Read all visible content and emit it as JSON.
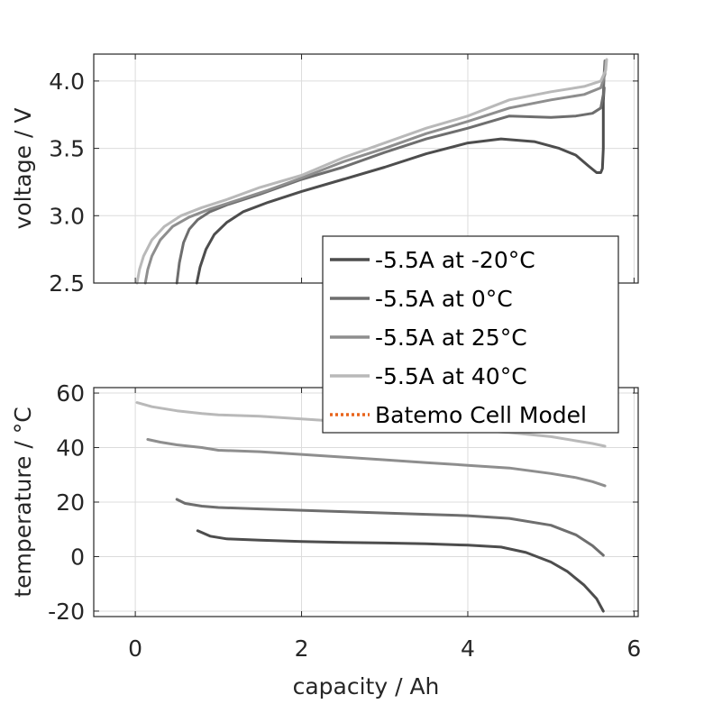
{
  "chart_data": [
    {
      "type": "line",
      "panel": "top",
      "title": "",
      "xlabel": "",
      "ylabel": "voltage / V",
      "xlim": [
        -0.5,
        6.05
      ],
      "ylim": [
        2.5,
        4.2
      ],
      "xticks": [
        0,
        2,
        4,
        6
      ],
      "xtick_labels": [],
      "yticks": [
        2.5,
        3.0,
        3.5,
        4.0
      ],
      "ytick_labels": [
        "2.5",
        "3.0",
        "3.5",
        "4.0"
      ],
      "grid": true,
      "series": [
        {
          "name": "-5.5A at -20°C",
          "color": "#4d4d4d",
          "x": [
            0.74,
            0.78,
            0.85,
            0.95,
            1.1,
            1.3,
            1.6,
            2.0,
            2.5,
            3.0,
            3.5,
            4.0,
            4.4,
            4.8,
            5.1,
            5.3,
            5.45,
            5.55,
            5.6,
            5.62,
            5.63,
            5.63,
            5.63,
            5.64
          ],
          "y": [
            2.5,
            2.62,
            2.75,
            2.86,
            2.95,
            3.03,
            3.1,
            3.18,
            3.27,
            3.36,
            3.46,
            3.54,
            3.57,
            3.55,
            3.5,
            3.45,
            3.37,
            3.32,
            3.32,
            3.35,
            3.5,
            3.7,
            3.85,
            3.95
          ]
        },
        {
          "name": "-5.5A at 0°C",
          "color": "#6e6e6e",
          "x": [
            0.5,
            0.53,
            0.58,
            0.65,
            0.75,
            0.9,
            1.1,
            1.5,
            2.0,
            2.5,
            3.0,
            3.5,
            4.0,
            4.5,
            5.0,
            5.3,
            5.5,
            5.6,
            5.63,
            5.64,
            5.65
          ],
          "y": [
            2.5,
            2.65,
            2.8,
            2.9,
            2.97,
            3.03,
            3.08,
            3.16,
            3.27,
            3.36,
            3.47,
            3.57,
            3.65,
            3.74,
            3.73,
            3.74,
            3.76,
            3.8,
            3.9,
            4.05,
            4.15
          ]
        },
        {
          "name": "-5.5A at 25°C",
          "color": "#8e8e8e",
          "x": [
            0.12,
            0.15,
            0.2,
            0.3,
            0.45,
            0.65,
            0.9,
            1.2,
            1.6,
            2.0,
            2.5,
            3.0,
            3.5,
            4.0,
            4.5,
            5.0,
            5.4,
            5.6,
            5.65,
            5.66
          ],
          "y": [
            2.5,
            2.6,
            2.7,
            2.82,
            2.92,
            2.99,
            3.05,
            3.11,
            3.19,
            3.28,
            3.4,
            3.5,
            3.61,
            3.7,
            3.8,
            3.86,
            3.9,
            3.95,
            4.05,
            4.15
          ]
        },
        {
          "name": "-5.5A at 40°C",
          "color": "#b9b9b9",
          "x": [
            0.02,
            0.05,
            0.1,
            0.2,
            0.35,
            0.55,
            0.8,
            1.1,
            1.5,
            2.0,
            2.5,
            3.0,
            3.5,
            4.0,
            4.5,
            5.0,
            5.4,
            5.6,
            5.66,
            5.67
          ],
          "y": [
            2.5,
            2.6,
            2.7,
            2.82,
            2.92,
            3.0,
            3.06,
            3.12,
            3.21,
            3.3,
            3.43,
            3.54,
            3.65,
            3.74,
            3.86,
            3.92,
            3.96,
            4.0,
            4.08,
            4.16
          ]
        }
      ]
    },
    {
      "type": "line",
      "panel": "bottom",
      "title": "",
      "xlabel": "capacity / Ah",
      "ylabel": "temperature / °C",
      "xlim": [
        -0.5,
        6.05
      ],
      "ylim": [
        -22,
        62
      ],
      "xticks": [
        0,
        2,
        4,
        6
      ],
      "xtick_labels": [
        "0",
        "2",
        "4",
        "6"
      ],
      "yticks": [
        -20,
        0,
        20,
        40,
        60
      ],
      "ytick_labels": [
        "-20",
        "0",
        "20",
        "40",
        "60"
      ],
      "grid": true,
      "series": [
        {
          "name": "-5.5A at -20°C",
          "color": "#4d4d4d",
          "x": [
            0.75,
            0.9,
            1.1,
            1.5,
            2.0,
            2.5,
            3.0,
            3.5,
            4.0,
            4.4,
            4.7,
            5.0,
            5.2,
            5.4,
            5.55,
            5.63
          ],
          "y": [
            9.5,
            7.5,
            6.5,
            6.0,
            5.5,
            5.2,
            5.0,
            4.7,
            4.2,
            3.5,
            1.5,
            -2.0,
            -5.5,
            -10.5,
            -15.5,
            -20.0
          ]
        },
        {
          "name": "-5.5A at 0°C",
          "color": "#6e6e6e",
          "x": [
            0.5,
            0.6,
            0.8,
            1.0,
            1.5,
            2.0,
            2.5,
            3.0,
            3.5,
            4.0,
            4.5,
            5.0,
            5.3,
            5.5,
            5.63
          ],
          "y": [
            21.0,
            19.5,
            18.5,
            18.0,
            17.5,
            17.0,
            16.5,
            16.0,
            15.5,
            15.0,
            14.0,
            11.5,
            8.0,
            4.0,
            0.5
          ]
        },
        {
          "name": "-5.5A at 25°C",
          "color": "#8e8e8e",
          "x": [
            0.15,
            0.3,
            0.5,
            0.8,
            1.0,
            1.5,
            2.0,
            2.5,
            3.0,
            3.5,
            4.0,
            4.5,
            5.0,
            5.3,
            5.5,
            5.65
          ],
          "y": [
            43.0,
            42.0,
            41.0,
            40.0,
            39.0,
            38.5,
            37.5,
            36.5,
            35.5,
            34.5,
            33.5,
            32.5,
            30.5,
            29.0,
            27.5,
            26.0
          ]
        },
        {
          "name": "-5.5A at 40°C",
          "color": "#b9b9b9",
          "x": [
            0.02,
            0.2,
            0.5,
            0.8,
            1.0,
            1.5,
            2.0,
            2.5,
            3.0,
            3.5,
            4.0,
            4.5,
            5.0,
            5.3,
            5.5,
            5.65
          ],
          "y": [
            56.5,
            55.0,
            53.5,
            52.5,
            52.0,
            51.5,
            50.5,
            49.5,
            48.5,
            47.5,
            46.5,
            45.5,
            44.0,
            42.5,
            41.5,
            40.5
          ]
        }
      ]
    }
  ],
  "legend": {
    "placement": "center-right",
    "entries": [
      {
        "label": "-5.5A at -20°C",
        "color": "#4d4d4d",
        "style": "solid"
      },
      {
        "label": "-5.5A at 0°C",
        "color": "#6e6e6e",
        "style": "solid"
      },
      {
        "label": "-5.5A at 25°C",
        "color": "#8e8e8e",
        "style": "solid"
      },
      {
        "label": "-5.5A at 40°C",
        "color": "#b9b9b9",
        "style": "solid"
      },
      {
        "label": "Batemo Cell Model",
        "color": "#e8641b",
        "style": "dotted"
      }
    ]
  }
}
